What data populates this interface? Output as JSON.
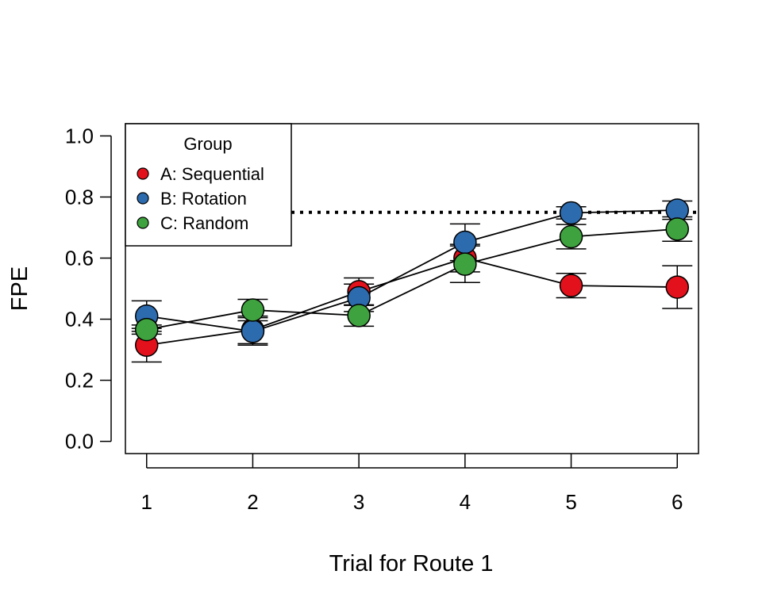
{
  "chart_data": {
    "type": "line",
    "title": "",
    "xlabel": "Trial for Route 1",
    "ylabel": "FPE",
    "x": [
      1,
      2,
      3,
      4,
      5,
      6
    ],
    "x_tick_labels": [
      "1",
      "2",
      "3",
      "4",
      "5",
      "6"
    ],
    "y_ticks": [
      0.0,
      0.2,
      0.4,
      0.6,
      0.8,
      1.0
    ],
    "y_tick_labels": [
      "0.0",
      "0.2",
      "0.4",
      "0.6",
      "0.8",
      "1.0"
    ],
    "xlim": [
      0.8,
      6.2
    ],
    "ylim": [
      -0.04,
      1.04
    ],
    "reference_line": {
      "y": 0.75,
      "style": "dotted"
    },
    "legend": {
      "title": "Group",
      "position": "top-left"
    },
    "grid": false,
    "series": [
      {
        "name": "A: Sequential",
        "color": "#E3111B",
        "values": [
          0.315,
          0.365,
          0.49,
          0.6,
          0.51,
          0.505
        ],
        "error": [
          0.055,
          0.045,
          0.045,
          0.045,
          0.04,
          0.07
        ]
      },
      {
        "name": "B: Rotation",
        "color": "#2D6BAF",
        "values": [
          0.41,
          0.36,
          0.47,
          0.652,
          0.748,
          0.757
        ],
        "error": [
          0.05,
          0.045,
          0.045,
          0.06,
          0.02,
          0.03
        ]
      },
      {
        "name": "C: Random",
        "color": "#3EA23E",
        "values": [
          0.366,
          0.43,
          0.412,
          0.58,
          0.67,
          0.695
        ],
        "error": [
          0.015,
          0.035,
          0.035,
          0.06,
          0.04,
          0.04
        ]
      }
    ]
  }
}
